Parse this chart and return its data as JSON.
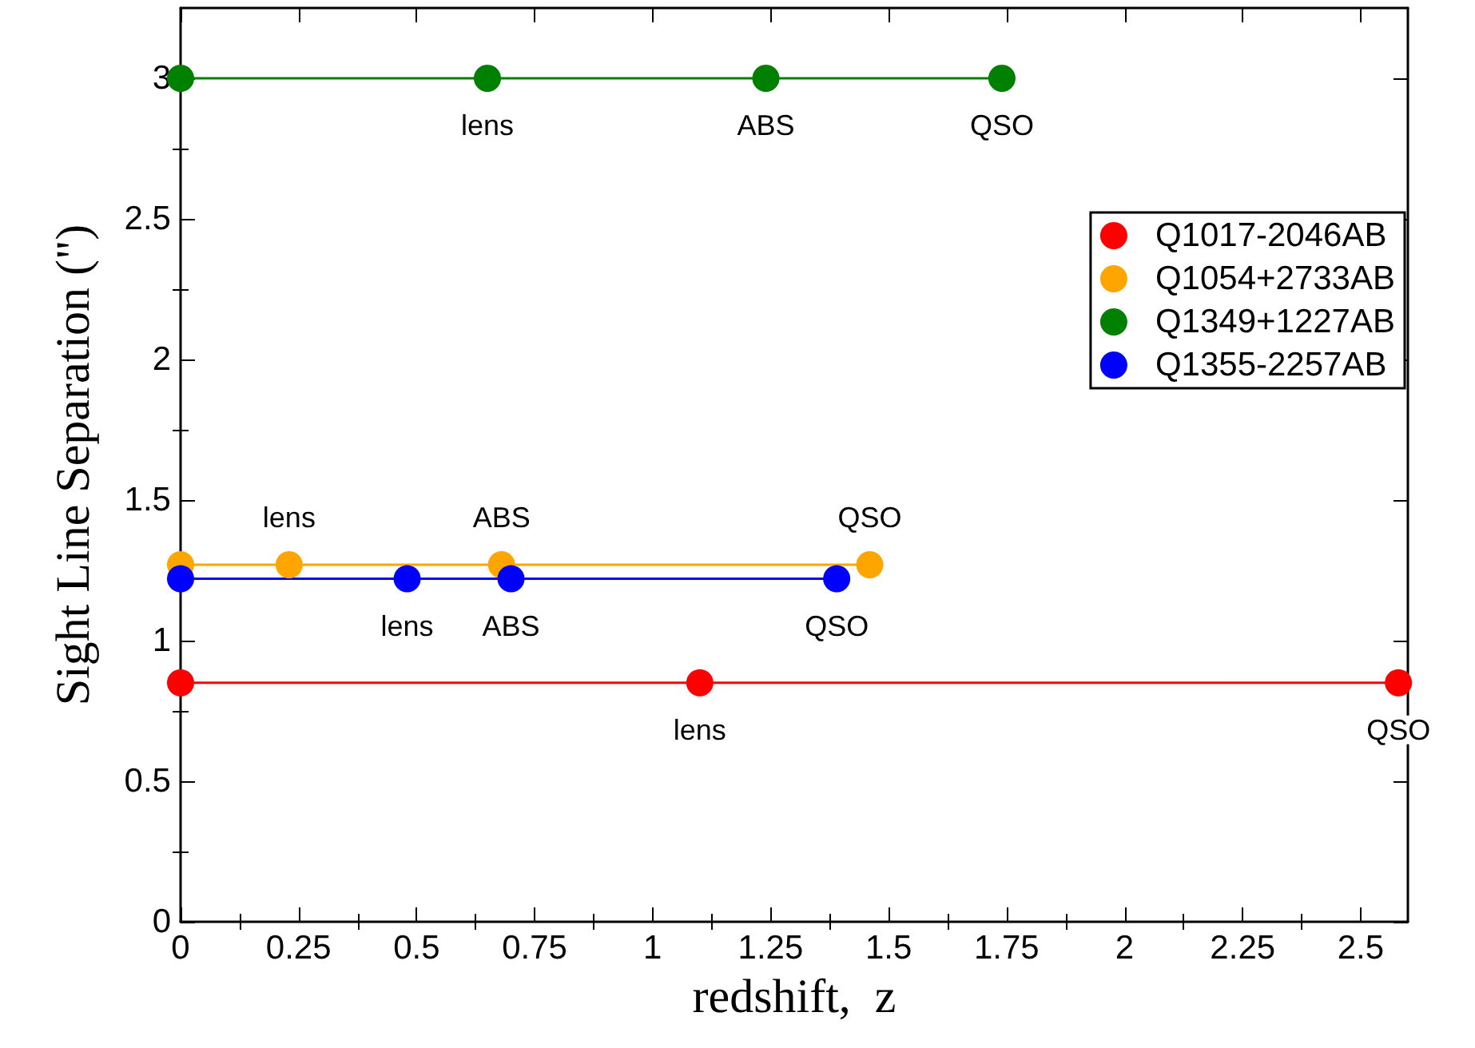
{
  "chart_data": {
    "type": "line",
    "xlabel": "redshift,  z",
    "ylabel": "Sight Line Separation (\")",
    "xlim": [
      0,
      2.6
    ],
    "xticks": [
      0,
      0.25,
      0.5,
      0.75,
      1,
      1.25,
      1.5,
      1.75,
      2,
      2.25,
      2.5
    ],
    "ylim": [
      0,
      3.25
    ],
    "yticks": [
      0,
      0.5,
      1,
      1.5,
      2,
      2.5,
      3
    ],
    "marker": "circle",
    "line_style": "solid",
    "legend": "top right",
    "grid": false,
    "series": [
      {
        "name": "Q1017-2046AB",
        "color": "#ff0000",
        "x": [
          0,
          1.1,
          2.58
        ],
        "values": [
          0.85,
          0.85,
          0.85
        ],
        "value_labels": [
          null,
          "lens",
          "QSO"
        ]
      },
      {
        "name": "Q1054+2733AB",
        "color": "#ffa500",
        "x": [
          0,
          0.23,
          0.68,
          1.46
        ],
        "values": [
          1.27,
          1.27,
          1.27,
          1.27
        ],
        "value_labels": [
          null,
          "lens",
          "ABS",
          "QSO"
        ]
      },
      {
        "name": "Q1349+1227AB",
        "color": "#008000",
        "x": [
          0,
          0.65,
          1.24,
          1.74
        ],
        "values": [
          3,
          3,
          3,
          3
        ],
        "value_labels": [
          null,
          "lens",
          "ABS",
          "QSO"
        ]
      },
      {
        "name": "Q1355-2257AB",
        "color": "#0000ff",
        "x": [
          0,
          0.48,
          0.7,
          1.39
        ],
        "values": [
          1.22,
          1.22,
          1.22,
          1.22
        ],
        "value_labels": [
          null,
          "lens",
          "ABS",
          "QSO"
        ]
      }
    ]
  }
}
